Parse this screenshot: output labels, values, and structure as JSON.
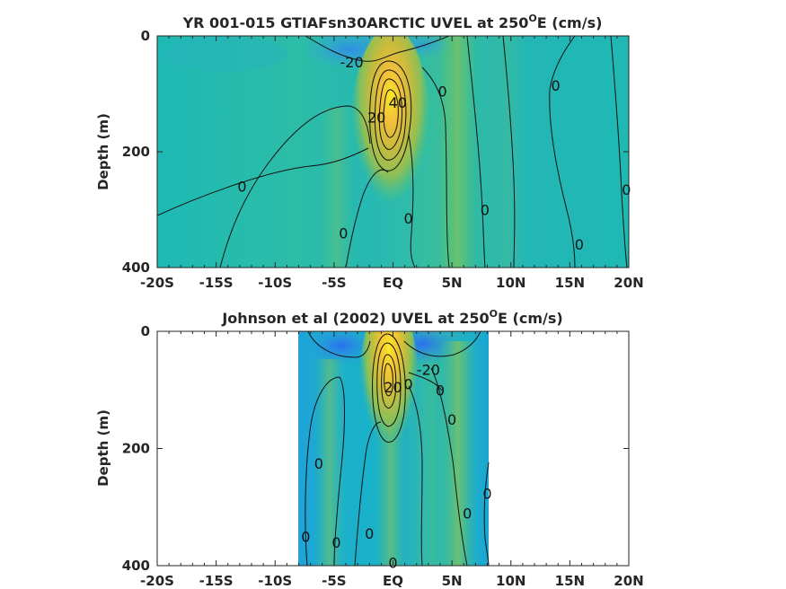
{
  "chart_data": [
    {
      "type": "heatmap",
      "title_main": "YR 001-015 GTIAFsn30ARCTIC UVEL at 250",
      "title_sup": "O",
      "title_tail": "E (cm/s)",
      "ylabel": "Depth (m)",
      "xlim": [
        -20,
        20
      ],
      "ylim": [
        0,
        400
      ],
      "y_reversed": true,
      "x_ticks": [
        -20,
        -15,
        -10,
        -5,
        0,
        5,
        10,
        15,
        20
      ],
      "x_tick_labels": [
        "-20S",
        "-15S",
        "-10S",
        "-5S",
        "EQ",
        "5N",
        "10N",
        "15N",
        "20N"
      ],
      "y_ticks": [
        0,
        200,
        400
      ],
      "y_tick_labels": [
        "0",
        "200",
        "400"
      ],
      "data_extent_x": [
        -20,
        20
      ],
      "contour_labels": [
        {
          "text": "-20",
          "x": -3.5,
          "y": 45
        },
        {
          "text": "0",
          "x": -12.8,
          "y": 260
        },
        {
          "text": "0",
          "x": -4.2,
          "y": 340
        },
        {
          "text": "0",
          "x": 1.3,
          "y": 315
        },
        {
          "text": "0",
          "x": 4.2,
          "y": 95
        },
        {
          "text": "0",
          "x": 7.8,
          "y": 300
        },
        {
          "text": "0",
          "x": 13.8,
          "y": 85
        },
        {
          "text": "0",
          "x": 15.8,
          "y": 360
        },
        {
          "text": "0",
          "x": 19.8,
          "y": 265
        },
        {
          "text": "20",
          "x": -1.4,
          "y": 140
        },
        {
          "text": "40",
          "x": 0.4,
          "y": 115
        }
      ],
      "colormap": "parula"
    },
    {
      "type": "heatmap",
      "title_main": "Johnson et al (2002) UVEL at 250",
      "title_sup": "O",
      "title_tail": "E (cm/s)",
      "ylabel": "Depth (m)",
      "xlim": [
        -20,
        20
      ],
      "ylim": [
        0,
        400
      ],
      "y_reversed": true,
      "x_ticks": [
        -20,
        -15,
        -10,
        -5,
        0,
        5,
        10,
        15,
        20
      ],
      "x_tick_labels": [
        "-20S",
        "-15S",
        "-10S",
        "-5S",
        "EQ",
        "5N",
        "10N",
        "15N",
        "20N"
      ],
      "y_ticks": [
        0,
        200,
        400
      ],
      "y_tick_labels": [
        "0",
        "200",
        "400"
      ],
      "data_extent_x": [
        -8,
        8.2
      ],
      "contour_labels": [
        {
          "text": "-20",
          "x": 3.0,
          "y": 65
        },
        {
          "text": "20",
          "x": 0.0,
          "y": 95
        },
        {
          "text": "0",
          "x": -6.3,
          "y": 225
        },
        {
          "text": "0",
          "x": -7.4,
          "y": 350
        },
        {
          "text": "0",
          "x": -4.8,
          "y": 360
        },
        {
          "text": "0",
          "x": -2.0,
          "y": 345
        },
        {
          "text": "0",
          "x": 1.3,
          "y": 90
        },
        {
          "text": "0",
          "x": 4.0,
          "y": 100
        },
        {
          "text": "0",
          "x": 5.0,
          "y": 150
        },
        {
          "text": "0",
          "x": 6.3,
          "y": 310
        },
        {
          "text": "0",
          "x": 8.0,
          "y": 277
        },
        {
          "text": "0",
          "x": 0.0,
          "y": 395
        }
      ],
      "colormap": "parula"
    }
  ]
}
